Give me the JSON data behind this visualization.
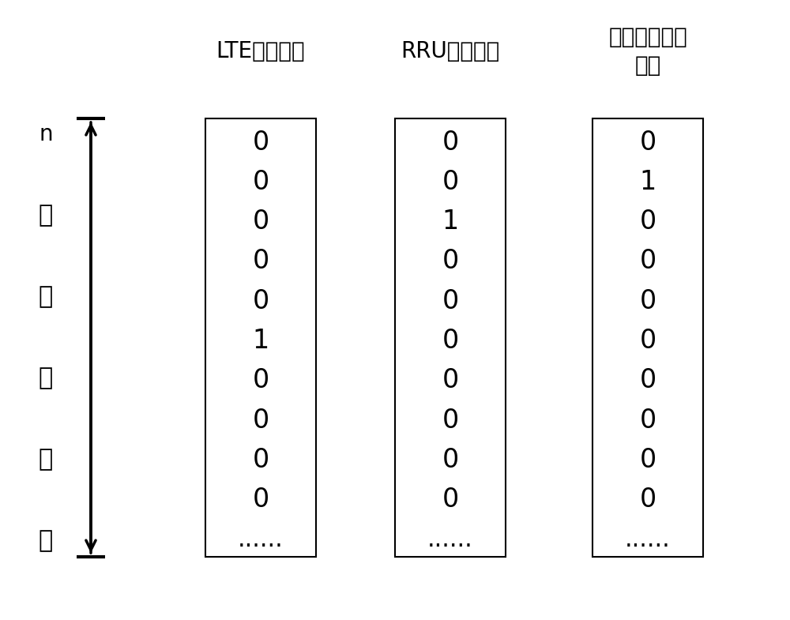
{
  "background_color": "#ffffff",
  "col1_label_line1": "LTE小区退服",
  "col2_label_line1": "RRU链路断链",
  "col3_label_line1": "光口接收链路",
  "col3_label_line2": "故障",
  "col1_values": [
    "0",
    "0",
    "0",
    "0",
    "0",
    "1",
    "0",
    "0",
    "0",
    "0",
    "......"
  ],
  "col2_values": [
    "0",
    "0",
    "1",
    "0",
    "0",
    "0",
    "0",
    "0",
    "0",
    "0",
    "......"
  ],
  "col3_values": [
    "0",
    "1",
    "0",
    "0",
    "0",
    "0",
    "0",
    "0",
    "0",
    "0",
    "......"
  ],
  "left_label_chars": [
    "n",
    "个",
    "类",
    "型",
    "告",
    "警"
  ],
  "figsize": [
    10.0,
    7.85
  ],
  "dpi": 100
}
